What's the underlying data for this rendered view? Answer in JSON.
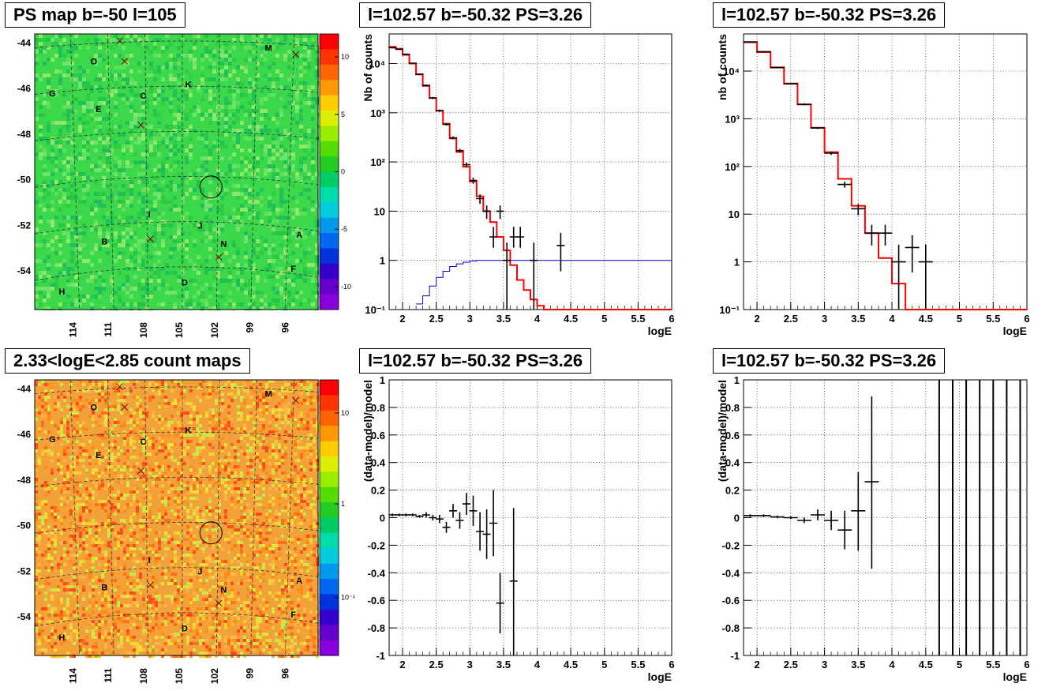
{
  "titles": {
    "ps_map": "PS map b=-50 l=105",
    "count_map": "2.33<logE<2.85 count maps",
    "spec1": "l=102.57 b=-50.32 PS=3.26",
    "spec2": "l=102.57 b=-50.32 PS=3.26",
    "res1": "l=102.57 b=-50.32 PS=3.26",
    "res2": "l=102.57 b=-50.32 PS=3.26"
  },
  "colors": {
    "model": "#ff0000",
    "acceptance": "#0000cc",
    "data": "#000000",
    "map_bg_ps": "#3ad84a",
    "map_bg_count": "#f2a23a"
  },
  "chart_data": [
    {
      "id": "ps_map",
      "type": "heatmap",
      "ylabels": [
        "-44",
        "-46",
        "-48",
        "-50",
        "-52",
        "-54"
      ],
      "xlabels": [
        "114",
        "111",
        "108",
        "105",
        "102",
        "99",
        "96"
      ],
      "colorbar": {
        "ticks": [
          "10",
          "5",
          "0",
          "-5",
          "-10"
        ],
        "scale": "linear",
        "range": [
          -12,
          12
        ]
      },
      "markers": [
        {
          "label": "M",
          "l": 97.7,
          "b": -44.2
        },
        {
          "label": "O",
          "l": 112.5,
          "b": -44.8
        },
        {
          "label": "K",
          "l": 104.5,
          "b": -45.8
        },
        {
          "label": "G",
          "l": 116.0,
          "b": -46.2
        },
        {
          "label": "C",
          "l": 108.3,
          "b": -46.3
        },
        {
          "label": "E",
          "l": 112.1,
          "b": -46.9
        },
        {
          "label": "I",
          "l": 107.8,
          "b": -51.5
        },
        {
          "label": "J",
          "l": 103.5,
          "b": -52.0
        },
        {
          "label": "A",
          "l": 95.1,
          "b": -52.4
        },
        {
          "label": "B",
          "l": 111.6,
          "b": -52.7
        },
        {
          "label": "N",
          "l": 101.5,
          "b": -52.8
        },
        {
          "label": "F",
          "l": 95.6,
          "b": -53.9
        },
        {
          "label": "D",
          "l": 104.8,
          "b": -54.5
        },
        {
          "label": "H",
          "l": 115.2,
          "b": -54.9
        }
      ],
      "cross_markers": [
        [
          110.3,
          -43.9
        ],
        [
          109.9,
          -44.8
        ],
        [
          108.5,
          -47.6
        ],
        [
          107.7,
          -52.6
        ],
        [
          101.9,
          -53.4
        ],
        [
          95.4,
          -44.5
        ]
      ],
      "circle": {
        "l": 102.57,
        "b": -50.32
      }
    },
    {
      "id": "count_map",
      "type": "heatmap",
      "ylabels": [
        "-44",
        "-46",
        "-48",
        "-50",
        "-52",
        "-54"
      ],
      "xlabels": [
        "114",
        "111",
        "108",
        "105",
        "102",
        "99",
        "96"
      ],
      "colorbar": {
        "ticks": [
          "10",
          "1",
          "10⁻¹"
        ],
        "scale": "log"
      },
      "circle": {
        "l": 102.57,
        "b": -50.32
      }
    },
    {
      "id": "spec1",
      "type": "line",
      "yscale": "log",
      "xlabel": "logE",
      "ylabel": "Nb of counts",
      "xlim": [
        1.8,
        6.0
      ],
      "ylim": [
        0.1,
        40000
      ],
      "xticks": [
        "2",
        "2.5",
        "3",
        "3.5",
        "4",
        "4.5",
        "5",
        "5.5",
        "6"
      ],
      "yticks": [
        "10⁻¹",
        "1",
        "10",
        "10²",
        "10³",
        "10⁴"
      ],
      "model_edges": [
        1.8,
        1.9,
        2.0,
        2.1,
        2.2,
        2.3,
        2.4,
        2.5,
        2.6,
        2.7,
        2.8,
        2.9,
        3.0,
        3.1,
        3.2,
        3.3,
        3.4,
        3.5,
        3.6,
        3.7,
        3.8,
        3.9,
        4.0,
        4.1,
        4.2,
        6.0
      ],
      "model_values": [
        22000,
        20000,
        15000,
        10000,
        6000,
        3500,
        2000,
        1100,
        600,
        300,
        160,
        80,
        40,
        20,
        10,
        6,
        3,
        1.6,
        0.8,
        0.4,
        0.25,
        0.16,
        0.12,
        0.1,
        0.1
      ],
      "acceptance_edges": [
        2.2,
        2.3,
        2.4,
        2.5,
        2.6,
        2.7,
        2.8,
        2.9,
        3.0,
        3.1,
        3.2,
        6.0
      ],
      "acceptance_values": [
        0.13,
        0.19,
        0.3,
        0.45,
        0.6,
        0.75,
        0.85,
        0.92,
        0.97,
        1.0,
        1.0
      ],
      "data_points": [
        {
          "x": 1.85,
          "y": 21000,
          "lo": 20500,
          "hi": 21500
        },
        {
          "x": 1.95,
          "y": 19500,
          "lo": 19000,
          "hi": 20000
        },
        {
          "x": 2.05,
          "y": 15500,
          "lo": 15000,
          "hi": 16000
        },
        {
          "x": 2.15,
          "y": 10200,
          "lo": 9900,
          "hi": 10500
        },
        {
          "x": 2.25,
          "y": 6100,
          "lo": 5900,
          "hi": 6300
        },
        {
          "x": 2.35,
          "y": 3600,
          "lo": 3450,
          "hi": 3750
        },
        {
          "x": 2.45,
          "y": 2000,
          "lo": 1900,
          "hi": 2100
        },
        {
          "x": 2.55,
          "y": 1100,
          "lo": 1040,
          "hi": 1160
        },
        {
          "x": 2.65,
          "y": 580,
          "lo": 550,
          "hi": 610
        },
        {
          "x": 2.75,
          "y": 310,
          "lo": 290,
          "hi": 330
        },
        {
          "x": 2.85,
          "y": 170,
          "lo": 155,
          "hi": 185
        },
        {
          "x": 2.95,
          "y": 88,
          "lo": 79,
          "hi": 97
        },
        {
          "x": 3.05,
          "y": 42,
          "lo": 36,
          "hi": 48
        },
        {
          "x": 3.15,
          "y": 18,
          "lo": 14,
          "hi": 22
        },
        {
          "x": 3.25,
          "y": 10,
          "lo": 7,
          "hi": 13
        },
        {
          "x": 3.35,
          "y": 3,
          "lo": 1.8,
          "hi": 4.8
        },
        {
          "x": 3.45,
          "y": 10,
          "lo": 7,
          "hi": 13
        },
        {
          "x": 3.55,
          "y": 1,
          "lo": 0.1,
          "hi": 2.3
        },
        {
          "x": 3.65,
          "y": 3,
          "lo": 1.8,
          "hi": 4.8
        },
        {
          "x": 3.75,
          "y": 3,
          "lo": 1.8,
          "hi": 4.8
        },
        {
          "x": 3.95,
          "y": 1,
          "lo": 0.1,
          "hi": 2.3
        },
        {
          "x": 4.35,
          "y": 2,
          "lo": 0.6,
          "hi": 3.6
        }
      ]
    },
    {
      "id": "spec2",
      "type": "line",
      "yscale": "log",
      "xlabel": "logE",
      "ylabel": "nb of counts",
      "xlim": [
        1.8,
        6.0
      ],
      "ylim": [
        0.1,
        60000
      ],
      "xticks": [
        "2",
        "2.5",
        "3",
        "3.5",
        "4",
        "4.5",
        "5",
        "5.5",
        "6"
      ],
      "yticks": [
        "10⁻¹",
        "1",
        "10",
        "10²",
        "10³",
        "10⁴"
      ],
      "model_edges": [
        1.8,
        2.0,
        2.2,
        2.4,
        2.6,
        2.8,
        3.0,
        3.2,
        3.4,
        3.6,
        3.8,
        4.0,
        4.2,
        6.0
      ],
      "model_values": [
        40000,
        25000,
        12000,
        5500,
        2000,
        650,
        200,
        55,
        15,
        4,
        1.2,
        0.35,
        0.1
      ],
      "data_points": [
        {
          "x": 1.9,
          "y": 41000,
          "lo": 40500,
          "hi": 41500
        },
        {
          "x": 2.1,
          "y": 25500,
          "lo": 25100,
          "hi": 25900
        },
        {
          "x": 2.3,
          "y": 11800,
          "lo": 11500,
          "hi": 12100
        },
        {
          "x": 2.5,
          "y": 5400,
          "lo": 5200,
          "hi": 5600
        },
        {
          "x": 2.7,
          "y": 2000,
          "lo": 1900,
          "hi": 2100
        },
        {
          "x": 2.9,
          "y": 640,
          "lo": 610,
          "hi": 670
        },
        {
          "x": 3.1,
          "y": 190,
          "lo": 175,
          "hi": 205
        },
        {
          "x": 3.3,
          "y": 42,
          "lo": 36,
          "hi": 48
        },
        {
          "x": 3.5,
          "y": 13,
          "lo": 9.5,
          "hi": 16.5
        },
        {
          "x": 3.7,
          "y": 4,
          "lo": 2.2,
          "hi": 6
        },
        {
          "x": 3.9,
          "y": 4,
          "lo": 2.2,
          "hi": 6
        },
        {
          "x": 4.1,
          "y": 1,
          "lo": 0.1,
          "hi": 2.3
        },
        {
          "x": 4.3,
          "y": 2,
          "lo": 0.6,
          "hi": 3.6
        },
        {
          "x": 4.5,
          "y": 1,
          "lo": 0.1,
          "hi": 2.3
        }
      ]
    },
    {
      "id": "res1",
      "type": "scatter",
      "xlabel": "logE",
      "ylabel": "(data-model)/model",
      "xlim": [
        1.8,
        6.0
      ],
      "ylim": [
        -1,
        1
      ],
      "xticks": [
        "2",
        "2.5",
        "3",
        "3.5",
        "4",
        "4.5",
        "5",
        "5.5",
        "6"
      ],
      "yticks": [
        "1",
        "0.8",
        "0.6",
        "0.4",
        "0.2",
        "0",
        "-0.2",
        "-0.4",
        "-0.6",
        "-0.8",
        "-1"
      ],
      "data_points": [
        {
          "x": 1.85,
          "y": 0.02,
          "lo": 0.01,
          "hi": 0.03
        },
        {
          "x": 1.95,
          "y": 0.02,
          "lo": 0.01,
          "hi": 0.03
        },
        {
          "x": 2.05,
          "y": 0.02,
          "lo": 0.01,
          "hi": 0.03
        },
        {
          "x": 2.15,
          "y": 0.02,
          "lo": 0.01,
          "hi": 0.03
        },
        {
          "x": 2.25,
          "y": 0.01,
          "lo": 0.0,
          "hi": 0.02
        },
        {
          "x": 2.35,
          "y": 0.02,
          "lo": 0.0,
          "hi": 0.04
        },
        {
          "x": 2.45,
          "y": 0.0,
          "lo": -0.02,
          "hi": 0.02
        },
        {
          "x": 2.55,
          "y": -0.01,
          "lo": -0.04,
          "hi": 0.02
        },
        {
          "x": 2.65,
          "y": -0.07,
          "lo": -0.11,
          "hi": -0.03
        },
        {
          "x": 2.75,
          "y": 0.05,
          "lo": 0.0,
          "hi": 0.1
        },
        {
          "x": 2.85,
          "y": -0.02,
          "lo": -0.08,
          "hi": 0.04
        },
        {
          "x": 2.95,
          "y": 0.1,
          "lo": 0.02,
          "hi": 0.18
        },
        {
          "x": 3.05,
          "y": 0.05,
          "lo": -0.06,
          "hi": 0.16
        },
        {
          "x": 3.15,
          "y": -0.1,
          "lo": -0.24,
          "hi": 0.04
        },
        {
          "x": 3.25,
          "y": -0.12,
          "lo": -0.3,
          "hi": 0.06
        },
        {
          "x": 3.35,
          "y": -0.04,
          "lo": -0.28,
          "hi": 0.2
        },
        {
          "x": 3.45,
          "y": -0.62,
          "lo": -0.84,
          "hi": -0.4
        },
        {
          "x": 3.65,
          "y": -0.46,
          "lo": -1.0,
          "hi": 0.07
        }
      ]
    },
    {
      "id": "res2",
      "type": "scatter",
      "xlabel": "logE",
      "ylabel": "(data-model)/model",
      "xlim": [
        1.8,
        6.0
      ],
      "ylim": [
        -1,
        1
      ],
      "xticks": [
        "2",
        "2.5",
        "3",
        "3.5",
        "4",
        "4.5",
        "5",
        "5.5",
        "6"
      ],
      "yticks": [
        "1",
        "0.8",
        "0.6",
        "0.4",
        "0.2",
        "0",
        "-0.2",
        "-0.4",
        "-0.6",
        "-0.8",
        "-1"
      ],
      "data_points": [
        {
          "x": 1.9,
          "y": 0.015,
          "lo": 0.005,
          "hi": 0.025
        },
        {
          "x": 2.1,
          "y": 0.015,
          "lo": 0.005,
          "hi": 0.025
        },
        {
          "x": 2.3,
          "y": 0.005,
          "lo": -0.005,
          "hi": 0.015
        },
        {
          "x": 2.5,
          "y": 0.0,
          "lo": -0.01,
          "hi": 0.01
        },
        {
          "x": 2.7,
          "y": -0.02,
          "lo": -0.04,
          "hi": 0.0
        },
        {
          "x": 2.9,
          "y": 0.02,
          "lo": -0.02,
          "hi": 0.06
        },
        {
          "x": 3.1,
          "y": -0.02,
          "lo": -0.09,
          "hi": 0.05
        },
        {
          "x": 3.3,
          "y": -0.09,
          "lo": -0.23,
          "hi": 0.05
        },
        {
          "x": 3.5,
          "y": 0.05,
          "lo": -0.24,
          "hi": 0.33
        },
        {
          "x": 3.7,
          "y": 0.26,
          "lo": -0.37,
          "hi": 0.88
        }
      ],
      "full_bars_x": [
        4.7,
        4.9,
        5.1,
        5.3,
        5.5,
        5.7,
        5.9
      ]
    }
  ]
}
